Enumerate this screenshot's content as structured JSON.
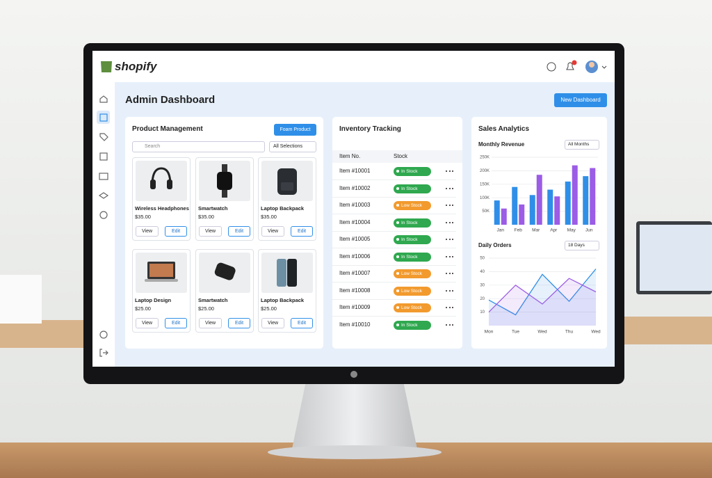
{
  "header": {
    "logo": "shopify"
  },
  "page_title": "Admin Dashboard",
  "new_button": "New Dashboard",
  "products": {
    "title": "Product Management",
    "add_button": "Foam Product",
    "search": "Search",
    "filter": "All Selections",
    "view": "View",
    "edit": "Edit",
    "items": [
      {
        "name": "Wireless Headphones",
        "price": "$35.00"
      },
      {
        "name": "Smartwatch",
        "price": "$35.00"
      },
      {
        "name": "Laptop Backpack",
        "price": "$35.00"
      },
      {
        "name": "Laptop Design",
        "price": "$25.00"
      },
      {
        "name": "Smartwatch",
        "price": "$25.00"
      },
      {
        "name": "Laptop Backpack",
        "price": "$25.00"
      }
    ]
  },
  "inventory": {
    "title": "Inventory Tracking",
    "columns": [
      "Item No.",
      "Stock"
    ],
    "rows": [
      {
        "item": "Item #10001",
        "status": "In Stock"
      },
      {
        "item": "Item #10002",
        "status": "In Stock"
      },
      {
        "item": "Item #10003",
        "status": "Low Stock"
      },
      {
        "item": "Item #10004",
        "status": "In Stock"
      },
      {
        "item": "Item #10005",
        "status": "In Stock"
      },
      {
        "item": "Item #10006",
        "status": "In Stock"
      },
      {
        "item": "Item #10007",
        "status": "Low Stock"
      },
      {
        "item": "Item #10008",
        "status": "Low Stock"
      },
      {
        "item": "Item #10009",
        "status": "Low Stock"
      },
      {
        "item": "Item #10010",
        "status": "In Stock"
      }
    ]
  },
  "analytics": {
    "title": "Sales Analytics",
    "revenue_filter": "All Months",
    "orders_filter": "18 Days"
  },
  "chart_data": [
    {
      "type": "bar",
      "title": "Monthly Revenue",
      "categories": [
        "Jan",
        "Feb",
        "Mar",
        "Apr",
        "May",
        "Jun"
      ],
      "series": [
        {
          "color": "#2f8fe8",
          "values": [
            90000,
            140000,
            110000,
            130000,
            160000,
            180000
          ]
        },
        {
          "color": "#9b5ce6",
          "values": [
            60000,
            75000,
            185000,
            105000,
            220000,
            210000
          ]
        }
      ],
      "ylim": [
        0,
        250000
      ],
      "yticks": [
        {
          "value": 50000,
          "label": "50K"
        },
        {
          "value": 100000,
          "label": "100K"
        },
        {
          "value": 150000,
          "label": "150K"
        },
        {
          "value": 200000,
          "label": "200K"
        },
        {
          "value": 250000,
          "label": "250K"
        }
      ],
      "grid": true
    },
    {
      "type": "line",
      "title": "Daily Orders",
      "categories": [
        "Mon",
        "Tue",
        "Wed",
        "Thu",
        "Wed"
      ],
      "series": [
        {
          "color": "#2f8fe8",
          "values": [
            19,
            8,
            38,
            18,
            42
          ]
        },
        {
          "color": "#9b5ce6",
          "values": [
            10,
            30,
            16,
            35,
            25
          ]
        }
      ],
      "ylim": [
        0,
        50
      ],
      "yticks": [
        10,
        20,
        30,
        40,
        50
      ],
      "grid": true
    }
  ]
}
